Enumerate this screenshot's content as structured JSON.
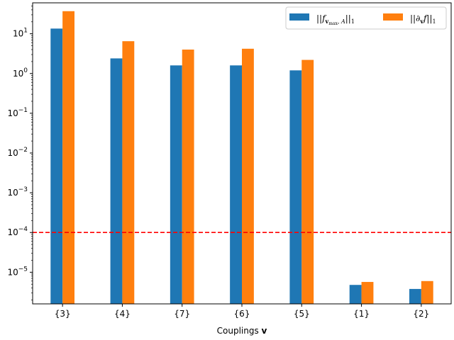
{
  "chart_data": {
    "type": "bar",
    "yscale": "log",
    "categories": [
      "{3}",
      "{4}",
      "{7}",
      "{6}",
      "{5}",
      "{1}",
      "{2}"
    ],
    "series": [
      {
        "name": "||f_{v_max,A}||_1",
        "color": "#1f77b4",
        "values": [
          13.5,
          2.4,
          1.6,
          1.6,
          1.2,
          4.8e-06,
          3.8e-06
        ]
      },
      {
        "name": "||∂_v f||_1",
        "color": "#ff7f0e",
        "values": [
          37,
          6.5,
          4.0,
          4.2,
          2.2,
          5.7e-06,
          6e-06
        ]
      }
    ],
    "ylim": [
      1.6e-06,
      60
    ],
    "ytick_values": [
      1e-05,
      0.0001,
      0.001,
      0.01,
      0.1,
      1,
      10
    ],
    "yticks": [
      {
        "base": "10",
        "exp": "−5"
      },
      {
        "base": "10",
        "exp": "−4"
      },
      {
        "base": "10",
        "exp": "−3"
      },
      {
        "base": "10",
        "exp": "−2"
      },
      {
        "base": "10",
        "exp": "−1"
      },
      {
        "base": "10",
        "exp": "0"
      },
      {
        "base": "10",
        "exp": "1"
      }
    ],
    "xlabel_text": "Couplings ",
    "xlabel_symbol": "v",
    "threshold": {
      "value": 0.0001,
      "color": "#ff0000",
      "style": "dashed"
    },
    "legend": {
      "placement": "top-right",
      "entries": [
        {
          "norm_open": "||",
          "f": "f",
          "sub_v": "v",
          "sub_max": "max",
          "sub_a": ", A",
          "norm_close": "||",
          "subscript": "1"
        },
        {
          "norm_open": "||",
          "partial": "∂",
          "sub_v": "v",
          "f": "f",
          "norm_close": "||",
          "subscript": "1"
        }
      ]
    },
    "grid": false
  }
}
